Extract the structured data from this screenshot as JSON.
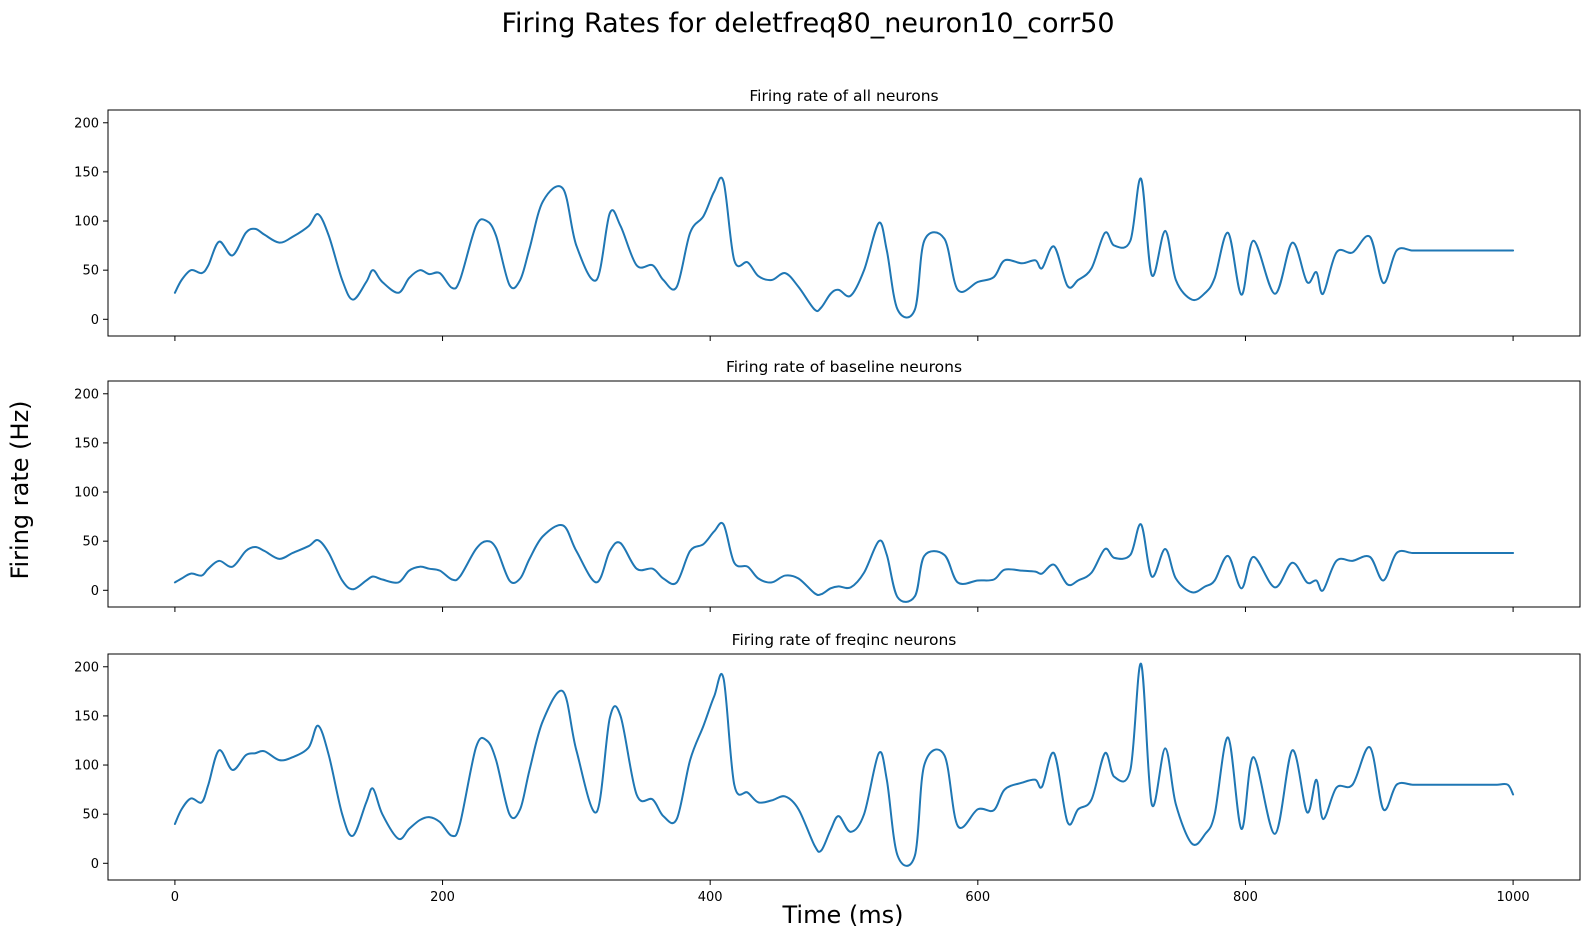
{
  "figure": {
    "suptitle": "Firing Rates for deletfreq80_neuron10_corr50",
    "xlabel": "Time (ms)",
    "ylabel": "Firing rate (Hz)"
  },
  "chart_data": [
    {
      "type": "line",
      "title": "Firing rate of all neurons",
      "xlabel": "",
      "ylabel": "",
      "xlim": [
        -50,
        1050
      ],
      "ylim": [
        -17,
        213
      ],
      "xticks": [
        0,
        200,
        400,
        600,
        800,
        1000
      ],
      "yticks": [
        0,
        50,
        100,
        150,
        200
      ],
      "xtick_labels_visible": false,
      "grid": false,
      "series": [
        {
          "color": "#1f77b4",
          "x": [
            0,
            5,
            12,
            20,
            25,
            33,
            43,
            53,
            60,
            67,
            78,
            88,
            100,
            107,
            115,
            125,
            133,
            143,
            148,
            155,
            167,
            175,
            183,
            190,
            198,
            207,
            213,
            225,
            233,
            240,
            250,
            258,
            265,
            275,
            290,
            300,
            315,
            325,
            333,
            345,
            357,
            365,
            375,
            385,
            395,
            403,
            410,
            418,
            428,
            436,
            446,
            456,
            466,
            478,
            483,
            490,
            496,
            505,
            515,
            526,
            532,
            540,
            553,
            560,
            575,
            585,
            600,
            612,
            620,
            633,
            643,
            648,
            657,
            667,
            675,
            685,
            695,
            702,
            714,
            722,
            730,
            740,
            748,
            760,
            770,
            777,
            787,
            797,
            806,
            822,
            835,
            846,
            853,
            858,
            868,
            880,
            893,
            903,
            913,
            925,
            938,
            950,
            958,
            970,
            980,
            988,
            996,
            1000
          ],
          "y": [
            27,
            40,
            50,
            47,
            55,
            79,
            65,
            88,
            92,
            86,
            78,
            84,
            95,
            107,
            85,
            40,
            20,
            38,
            50,
            38,
            27,
            42,
            50,
            46,
            47,
            32,
            40,
            95,
            100,
            85,
            35,
            40,
            72,
            120,
            133,
            75,
            40,
            108,
            95,
            55,
            55,
            40,
            33,
            88,
            105,
            130,
            140,
            60,
            58,
            44,
            40,
            47,
            33,
            10,
            12,
            26,
            30,
            24,
            50,
            98,
            70,
            10,
            10,
            80,
            82,
            30,
            38,
            43,
            60,
            57,
            60,
            52,
            74,
            34,
            40,
            52,
            88,
            75,
            80,
            143,
            45,
            90,
            40,
            20,
            27,
            42,
            88,
            25,
            80,
            26,
            78,
            38,
            48,
            26,
            68,
            68,
            84,
            37,
            70,
            70,
            70,
            70,
            70,
            70,
            70,
            70,
            70,
            70
          ],
          "smooth": true
        }
      ]
    },
    {
      "type": "line",
      "title": "Firing rate of baseline neurons",
      "xlabel": "",
      "ylabel": "",
      "xlim": [
        -50,
        1050
      ],
      "ylim": [
        -17,
        213
      ],
      "xticks": [
        0,
        200,
        400,
        600,
        800,
        1000
      ],
      "yticks": [
        0,
        50,
        100,
        150,
        200
      ],
      "xtick_labels_visible": false,
      "grid": false,
      "series": [
        {
          "color": "#1f77b4",
          "x": [
            0,
            5,
            12,
            20,
            25,
            33,
            43,
            53,
            60,
            67,
            78,
            88,
            100,
            107,
            115,
            125,
            133,
            143,
            148,
            155,
            167,
            175,
            183,
            190,
            198,
            207,
            213,
            225,
            233,
            240,
            250,
            258,
            265,
            275,
            290,
            300,
            315,
            325,
            333,
            345,
            357,
            365,
            375,
            385,
            395,
            403,
            410,
            418,
            428,
            436,
            446,
            456,
            466,
            478,
            483,
            490,
            496,
            505,
            515,
            526,
            532,
            540,
            553,
            560,
            575,
            585,
            600,
            612,
            620,
            633,
            643,
            648,
            657,
            667,
            675,
            685,
            695,
            702,
            714,
            722,
            730,
            740,
            748,
            760,
            770,
            777,
            787,
            797,
            806,
            822,
            835,
            846,
            853,
            858,
            868,
            880,
            893,
            903,
            913,
            925,
            938,
            950,
            958,
            970,
            980,
            988,
            996,
            1000
          ],
          "y": [
            8,
            12,
            17,
            15,
            22,
            30,
            24,
            40,
            44,
            40,
            32,
            38,
            45,
            51,
            38,
            10,
            1,
            10,
            14,
            11,
            8,
            20,
            24,
            22,
            20,
            11,
            14,
            42,
            50,
            43,
            10,
            12,
            32,
            55,
            66,
            40,
            8,
            40,
            48,
            22,
            22,
            12,
            8,
            40,
            47,
            60,
            67,
            28,
            24,
            12,
            8,
            15,
            12,
            -3,
            -4,
            2,
            4,
            3,
            18,
            50,
            36,
            -7,
            -6,
            35,
            36,
            8,
            10,
            11,
            21,
            20,
            19,
            17,
            26,
            6,
            10,
            18,
            42,
            33,
            36,
            67,
            14,
            42,
            12,
            -2,
            4,
            10,
            35,
            2,
            34,
            3,
            28,
            8,
            10,
            0,
            30,
            30,
            34,
            10,
            38,
            38,
            38,
            38,
            38,
            38,
            38,
            38,
            38,
            38
          ],
          "smooth": true
        }
      ]
    },
    {
      "type": "line",
      "title": "Firing rate of freqinc neurons",
      "xlabel": "",
      "ylabel": "",
      "xlim": [
        -50,
        1050
      ],
      "ylim": [
        -17,
        213
      ],
      "xticks": [
        0,
        200,
        400,
        600,
        800,
        1000
      ],
      "yticks": [
        0,
        50,
        100,
        150,
        200
      ],
      "xtick_labels_visible": true,
      "grid": false,
      "series": [
        {
          "color": "#1f77b4",
          "x": [
            0,
            5,
            12,
            20,
            25,
            33,
            43,
            53,
            60,
            67,
            78,
            88,
            100,
            107,
            115,
            125,
            133,
            143,
            148,
            155,
            167,
            175,
            183,
            190,
            198,
            207,
            213,
            225,
            233,
            240,
            250,
            258,
            265,
            275,
            290,
            300,
            315,
            325,
            333,
            345,
            357,
            365,
            375,
            385,
            395,
            403,
            410,
            418,
            428,
            436,
            446,
            456,
            466,
            478,
            483,
            490,
            496,
            505,
            515,
            526,
            532,
            540,
            553,
            560,
            575,
            585,
            600,
            612,
            620,
            633,
            643,
            648,
            657,
            667,
            675,
            685,
            695,
            702,
            714,
            722,
            730,
            740,
            748,
            760,
            770,
            777,
            787,
            797,
            806,
            822,
            835,
            846,
            853,
            858,
            868,
            880,
            893,
            903,
            913,
            925,
            938,
            950,
            958,
            970,
            980,
            988,
            996,
            1000
          ],
          "y": [
            40,
            55,
            66,
            62,
            80,
            115,
            95,
            110,
            112,
            114,
            105,
            108,
            118,
            140,
            110,
            50,
            28,
            62,
            76,
            50,
            25,
            35,
            44,
            47,
            42,
            28,
            40,
            118,
            125,
            105,
            50,
            55,
            95,
            145,
            175,
            115,
            52,
            148,
            150,
            70,
            65,
            48,
            45,
            105,
            140,
            170,
            188,
            80,
            72,
            62,
            64,
            68,
            55,
            18,
            13,
            34,
            48,
            32,
            50,
            112,
            85,
            8,
            8,
            100,
            110,
            38,
            55,
            54,
            75,
            82,
            85,
            78,
            112,
            42,
            55,
            65,
            112,
            88,
            95,
            203,
            60,
            117,
            60,
            20,
            30,
            50,
            128,
            35,
            108,
            30,
            115,
            52,
            85,
            45,
            77,
            80,
            118,
            55,
            80,
            80,
            80,
            80,
            80,
            80,
            80,
            80,
            80,
            70
          ],
          "smooth": true
        }
      ]
    }
  ]
}
